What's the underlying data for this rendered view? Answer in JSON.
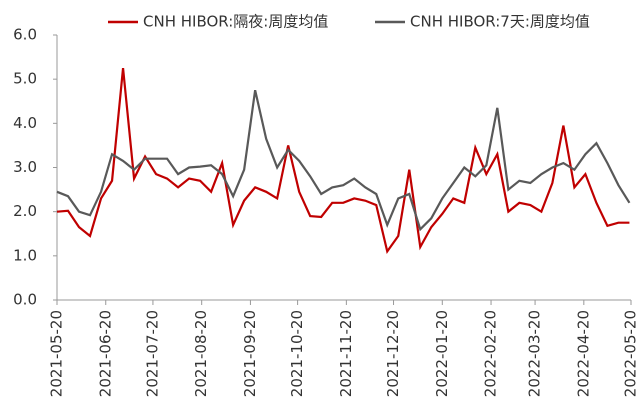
{
  "chart_data": {
    "type": "line",
    "x": [
      "2021-05-20",
      "2021-05-27",
      "2021-06-03",
      "2021-06-10",
      "2021-06-17",
      "2021-06-24",
      "2021-07-01",
      "2021-07-08",
      "2021-07-15",
      "2021-07-22",
      "2021-07-29",
      "2021-08-05",
      "2021-08-12",
      "2021-08-19",
      "2021-08-26",
      "2021-09-02",
      "2021-09-09",
      "2021-09-16",
      "2021-09-23",
      "2021-09-30",
      "2021-10-07",
      "2021-10-14",
      "2021-10-21",
      "2021-10-28",
      "2021-11-04",
      "2021-11-11",
      "2021-11-18",
      "2021-11-25",
      "2021-12-02",
      "2021-12-09",
      "2021-12-16",
      "2021-12-23",
      "2021-12-30",
      "2022-01-06",
      "2022-01-13",
      "2022-01-20",
      "2022-01-27",
      "2022-02-03",
      "2022-02-10",
      "2022-02-17",
      "2022-02-24",
      "2022-03-03",
      "2022-03-10",
      "2022-03-17",
      "2022-03-24",
      "2022-03-31",
      "2022-04-07",
      "2022-04-14",
      "2022-04-21",
      "2022-04-28",
      "2022-05-05",
      "2022-05-12",
      "2022-05-19"
    ],
    "series": [
      {
        "name": "CNH HIBOR:隔夜:周度均值",
        "color": "#c00000",
        "values": [
          2.0,
          2.02,
          1.65,
          1.45,
          2.3,
          2.7,
          5.25,
          2.75,
          3.25,
          2.85,
          2.75,
          2.55,
          2.75,
          2.7,
          2.45,
          3.1,
          1.7,
          2.25,
          2.55,
          2.45,
          2.3,
          3.5,
          2.45,
          1.9,
          1.88,
          2.2,
          2.2,
          2.3,
          2.25,
          2.15,
          1.1,
          1.45,
          2.95,
          1.2,
          1.65,
          1.95,
          2.3,
          2.2,
          3.45,
          2.85,
          3.3,
          2.0,
          2.2,
          2.15,
          2.0,
          2.65,
          3.95,
          2.55,
          2.85,
          2.2,
          1.68,
          1.75,
          1.75
        ]
      },
      {
        "name": "CNH HIBOR:7天:周度均值",
        "color": "#595959",
        "values": [
          2.45,
          2.35,
          2.0,
          1.92,
          2.45,
          3.3,
          3.15,
          2.95,
          3.2,
          3.2,
          3.2,
          2.85,
          3.0,
          3.02,
          3.05,
          2.85,
          2.35,
          2.95,
          4.75,
          3.65,
          3.0,
          3.4,
          3.15,
          2.8,
          2.4,
          2.55,
          2.6,
          2.75,
          2.55,
          2.4,
          1.7,
          2.3,
          2.4,
          1.6,
          1.85,
          2.3,
          2.65,
          3.0,
          2.8,
          3.05,
          4.35,
          2.5,
          2.7,
          2.65,
          2.85,
          3.0,
          3.1,
          2.95,
          3.3,
          3.55,
          3.1,
          2.6,
          2.2
        ]
      }
    ],
    "xlim": [
      "2021-05-20",
      "2022-05-20"
    ],
    "xticks": [
      "2021-05-20",
      "2021-06-20",
      "2021-07-20",
      "2021-08-20",
      "2021-09-20",
      "2021-10-20",
      "2021-11-20",
      "2021-12-20",
      "2022-01-20",
      "2022-02-20",
      "2022-03-20",
      "2022-04-20",
      "2022-05-20"
    ],
    "ylim": [
      0,
      6
    ],
    "yticks": [
      {
        "value": 0,
        "label": "0.0"
      },
      {
        "value": 1,
        "label": "1.0"
      },
      {
        "value": 2,
        "label": "2.0"
      },
      {
        "value": 3,
        "label": "3.0"
      },
      {
        "value": 4,
        "label": "4.0"
      },
      {
        "value": 5,
        "label": "5.0"
      },
      {
        "value": 6,
        "label": "6.0"
      }
    ],
    "legend": "top"
  }
}
